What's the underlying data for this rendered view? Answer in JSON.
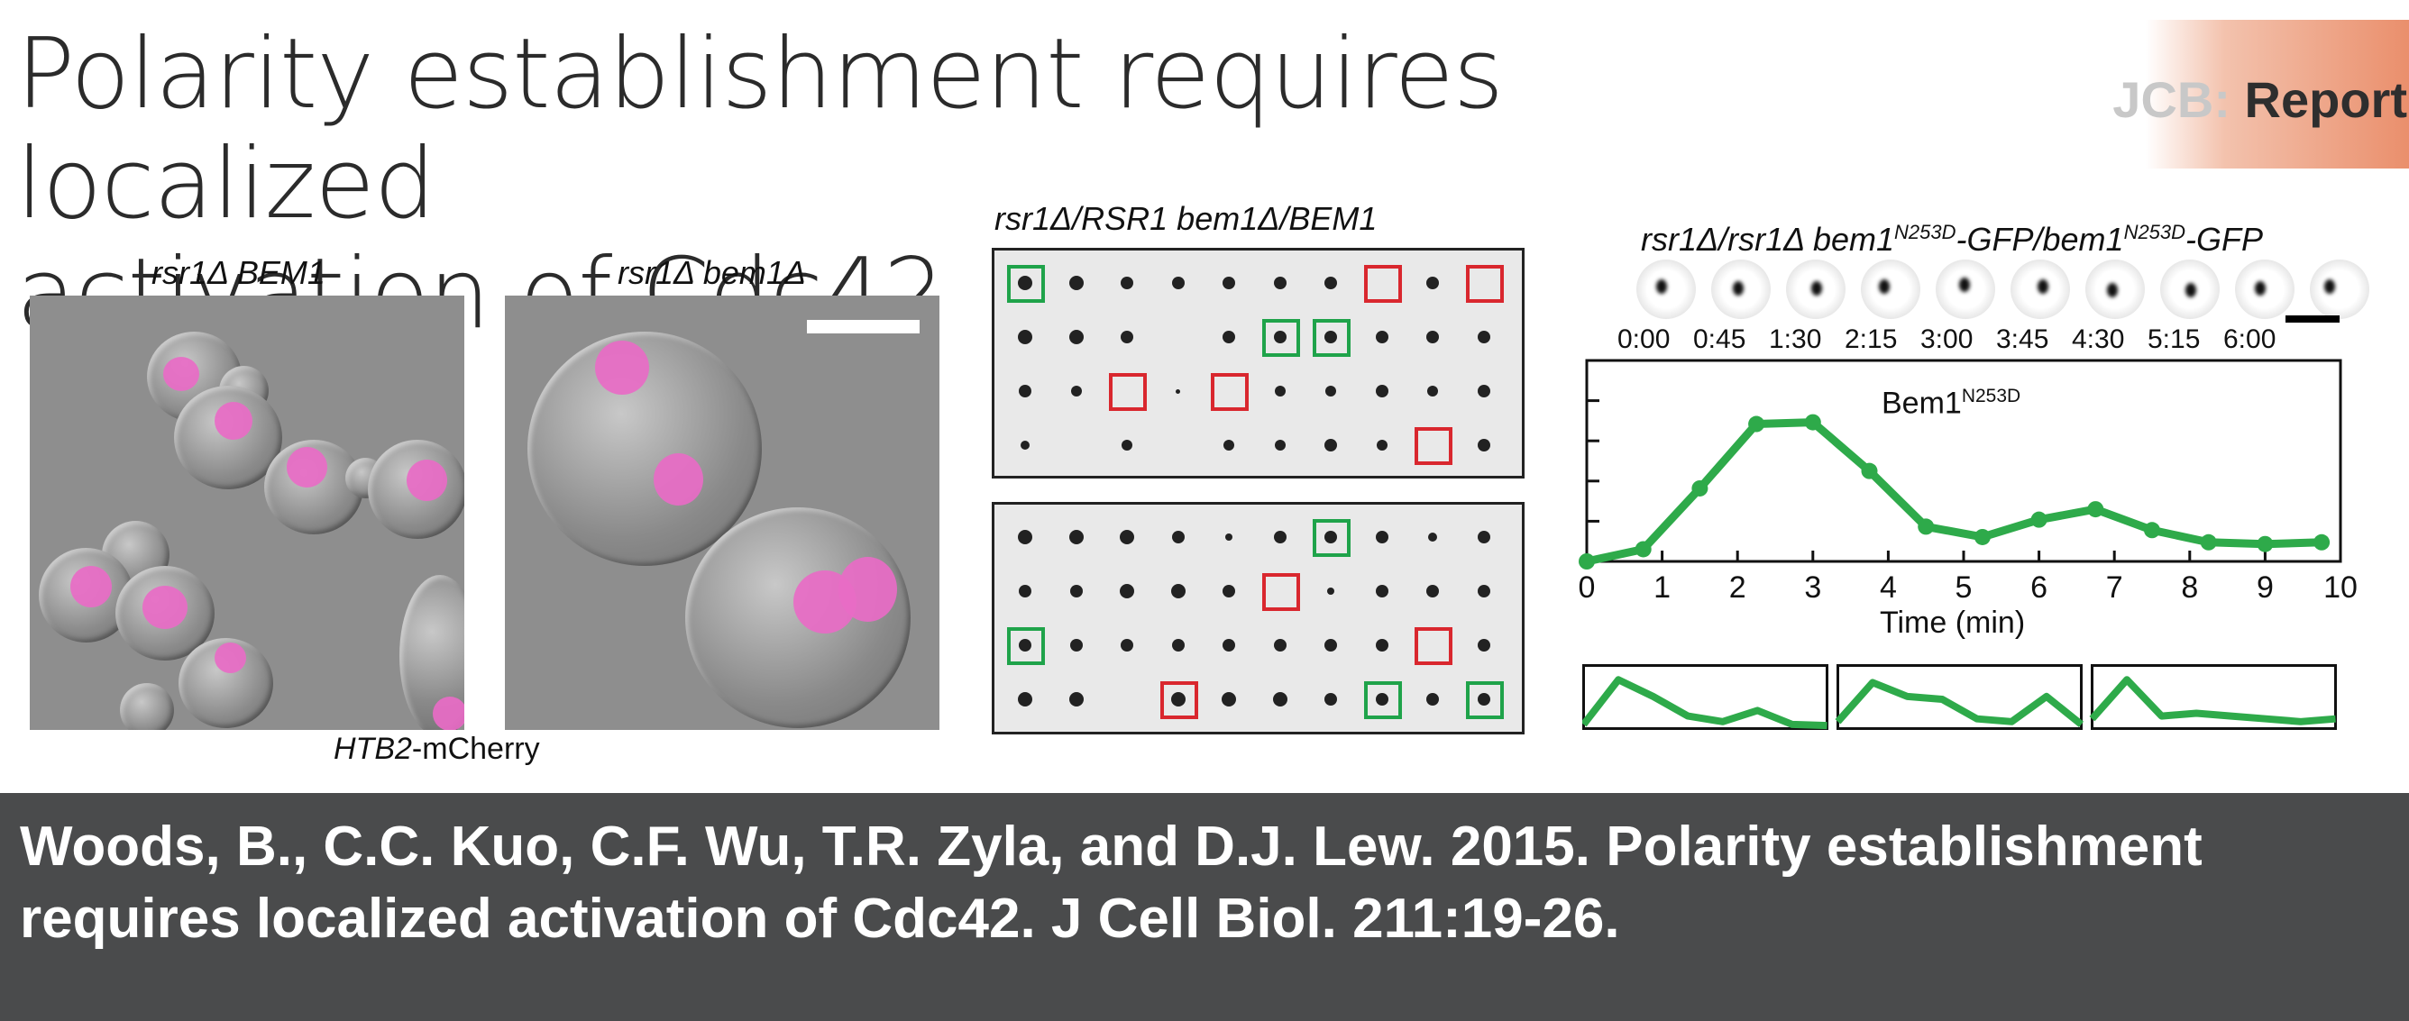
{
  "header": {
    "title_line1": "Polarity establishment requires localized",
    "title_line2": "activation of Cdc42",
    "journal_prefix": "JCB:",
    "journal_section": "Report"
  },
  "panels": {
    "left_label": "rsr1Δ BEM1",
    "right_label": "rsr1Δ bem1Δ",
    "micrograph_caption_gene": "HTB2",
    "micrograph_caption_suffix": "-mCherry",
    "plates_title": "rsr1Δ/RSR1 bem1Δ/BEM1",
    "timelapse_title_a": "rsr1Δ/rsr1Δ bem1",
    "timelapse_title_sup": "N253D",
    "timelapse_title_b": "-GFP/bem1",
    "timelapse_title_sup2": "N253D",
    "timelapse_title_c": "-GFP",
    "timepoints": [
      "0:00",
      "0:45",
      "1:30",
      "2:15",
      "3:00",
      "3:45",
      "4:30",
      "5:15",
      "6:00"
    ]
  },
  "chart_data": {
    "type": "line",
    "series": [
      {
        "name": "Bem1N253D",
        "x": [
          0,
          0.75,
          1.5,
          2.25,
          3,
          3.75,
          4.5,
          5.25,
          6,
          6.75,
          7.5,
          8.25,
          9,
          9.75
        ],
        "values": [
          0,
          0.07,
          0.42,
          0.79,
          0.8,
          0.52,
          0.2,
          0.14,
          0.24,
          0.3,
          0.18,
          0.11,
          0.1,
          0.11
        ]
      }
    ],
    "legend_main": "Bem1",
    "legend_sup": "N253D",
    "xlabel": "Time (min)",
    "ticks": [
      "0",
      "1",
      "2",
      "3",
      "4",
      "5",
      "6",
      "7",
      "8",
      "9",
      "10"
    ],
    "xlim": [
      0,
      10
    ],
    "ylim": [
      0,
      1
    ],
    "line_color": "#2eaa4a",
    "mini_series": [
      [
        0.05,
        0.85,
        0.55,
        0.2,
        0.1,
        0.3,
        0.05,
        0.03
      ],
      [
        0.1,
        0.8,
        0.55,
        0.5,
        0.15,
        0.1,
        0.55,
        0.05
      ],
      [
        0.15,
        0.85,
        0.2,
        0.25,
        0.2,
        0.15,
        0.1,
        0.15
      ]
    ]
  },
  "citation": "Woods, B., C.C. Kuo, C.F. Wu, T.R. Zyla, and D.J. Lew. 2015. Polarity establishment requires localized activation of Cdc42. J Cell Biol. 211:19-26.",
  "colors": {
    "caption_bg": "#4a4b4c",
    "accent_red": "#d9272e",
    "accent_green": "#1fa34a",
    "nucleus": "#e86bc6"
  }
}
